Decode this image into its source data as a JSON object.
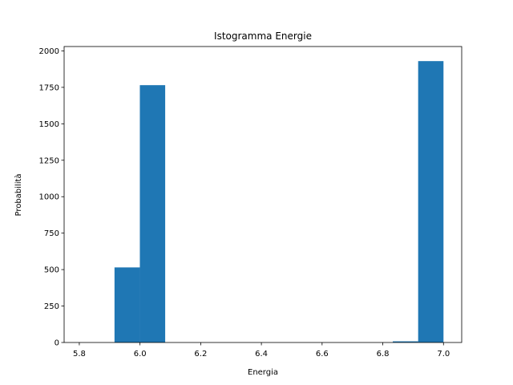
{
  "chart_data": {
    "type": "bar",
    "title": "Istogramma Energie",
    "xlabel": "Energia",
    "ylabel": "Probabilità",
    "xlim": [
      5.75,
      7.06
    ],
    "ylim": [
      0,
      2030
    ],
    "xticks": [
      5.8,
      6.0,
      6.2,
      6.4,
      6.6,
      6.8,
      7.0
    ],
    "xtick_labels": [
      "5.8",
      "6.0",
      "6.2",
      "6.4",
      "6.6",
      "6.8",
      "7.0"
    ],
    "yticks": [
      0,
      250,
      500,
      750,
      1000,
      1250,
      1500,
      1750,
      2000
    ],
    "ytick_labels": [
      "0",
      "250",
      "500",
      "750",
      "1000",
      "1250",
      "1500",
      "1750",
      "2000"
    ],
    "grid": false,
    "bar_color": "#1f77b4",
    "bins": [
      {
        "x0": 5.916,
        "x1": 5.9995,
        "value": 515
      },
      {
        "x0": 5.9995,
        "x1": 6.083,
        "value": 1765
      },
      {
        "x0": 6.833,
        "x1": 6.9165,
        "value": 8
      },
      {
        "x0": 6.9165,
        "x1": 7.0,
        "value": 1930
      }
    ]
  }
}
